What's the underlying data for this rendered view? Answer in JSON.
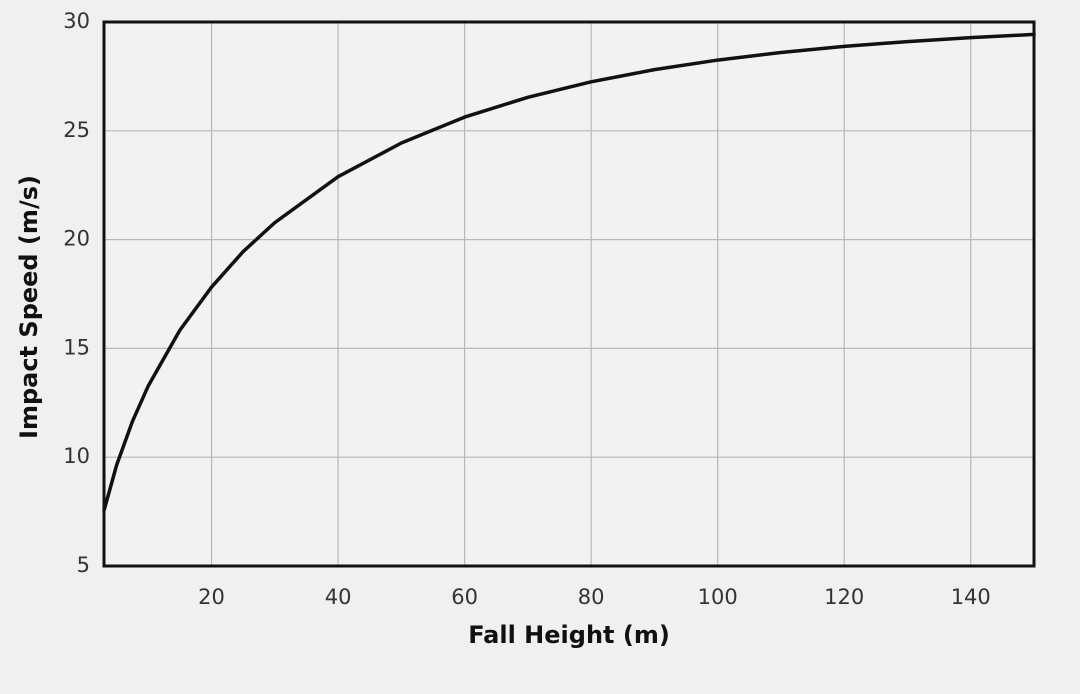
{
  "chart_data": {
    "type": "line",
    "x_label": "Fall Height (m)",
    "y_label": "Impact Speed (m/s)",
    "x": [
      3,
      5,
      7.5,
      10,
      15,
      20,
      25,
      30,
      40,
      50,
      60,
      70,
      80,
      90,
      100,
      110,
      120,
      130,
      140,
      150
    ],
    "series": [
      {
        "color": "#111111",
        "values": [
          7.55,
          9.64,
          11.65,
          13.28,
          15.84,
          17.82,
          19.45,
          20.78,
          22.89,
          24.44,
          25.63,
          26.54,
          27.25,
          27.81,
          28.25,
          28.6,
          28.88,
          29.1,
          29.28,
          29.43
        ]
      }
    ],
    "xlim": [
      3,
      150
    ],
    "ylim": [
      5,
      30
    ],
    "xticks": [
      20,
      40,
      60,
      80,
      100,
      120,
      140
    ],
    "yticks": [
      5,
      10,
      15,
      20,
      25,
      30
    ],
    "grid": true
  }
}
